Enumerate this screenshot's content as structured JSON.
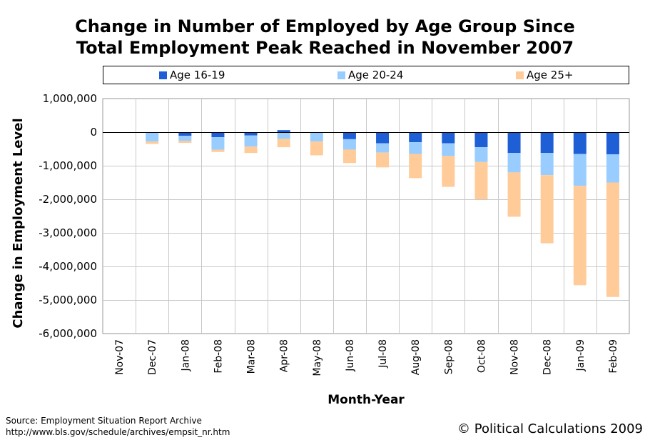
{
  "chart_data": {
    "type": "bar",
    "stacked": true,
    "title_line1": "Change in Number of Employed by Age Group Since",
    "title_line2": "Total Employment Peak Reached in November 2007",
    "xlabel": "Month-Year",
    "ylabel": "Change in Employment Level",
    "ylim": [
      -6000000,
      1000000
    ],
    "yticks": [
      1000000,
      0,
      -1000000,
      -2000000,
      -3000000,
      -4000000,
      -5000000,
      -6000000
    ],
    "ytick_labels": [
      "1,000,000",
      "0",
      "-1,000,000",
      "-2,000,000",
      "-3,000,000",
      "-4,000,000",
      "-5,000,000",
      "-6,000,000"
    ],
    "categories": [
      "Nov-07",
      "Dec-07",
      "Jan-08",
      "Feb-08",
      "Mar-08",
      "Apr-08",
      "May-08",
      "Jun-08",
      "Jul-08",
      "Aug-08",
      "Sep-08",
      "Oct-08",
      "Nov-08",
      "Dec-08",
      "Jan-09",
      "Feb-09"
    ],
    "series": [
      {
        "name": "Age 16-19",
        "color": "#1f5fd6",
        "values": [
          0,
          -20000,
          -110000,
          -150000,
          -100000,
          60000,
          -20000,
          -210000,
          -330000,
          -300000,
          -330000,
          -450000,
          -620000,
          -620000,
          -650000,
          -660000
        ]
      },
      {
        "name": "Age 20-24",
        "color": "#99ccff",
        "values": [
          0,
          -260000,
          -150000,
          -370000,
          -330000,
          -200000,
          -260000,
          -310000,
          -280000,
          -350000,
          -380000,
          -440000,
          -580000,
          -660000,
          -950000,
          -840000
        ]
      },
      {
        "name": "Age 25+",
        "color": "#ffcc99",
        "values": [
          0,
          -70000,
          -60000,
          -70000,
          -190000,
          -250000,
          -410000,
          -400000,
          -440000,
          -720000,
          -920000,
          -1110000,
          -1320000,
          -2030000,
          -2960000,
          -3410000
        ]
      }
    ],
    "grid": "horizontal",
    "legend_position": "top"
  },
  "footer": {
    "source_line1": "Source: Employment Situation Report Archive",
    "source_line2": "http://www.bls.gov/schedule/archives/empsit_nr.htm",
    "copyright": "© Political Calculations 2009"
  }
}
